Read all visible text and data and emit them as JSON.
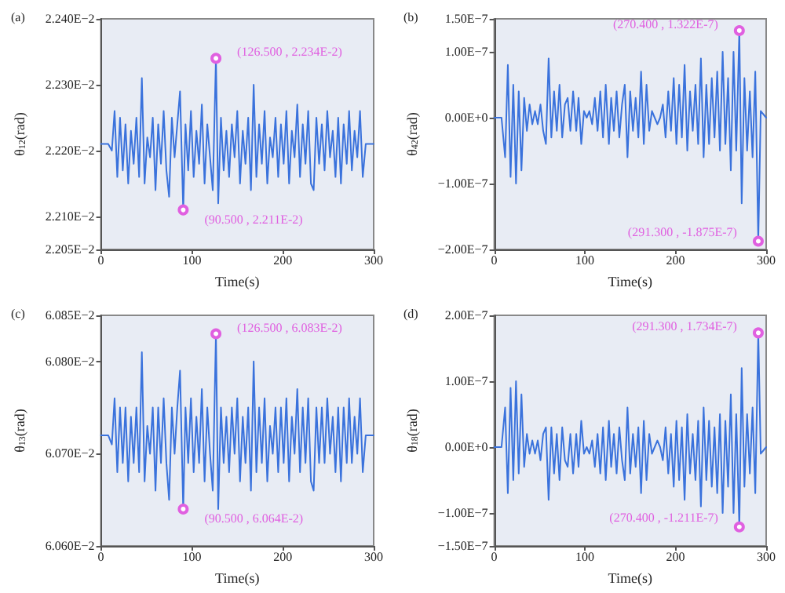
{
  "chart_data": [
    {
      "type": "line",
      "title": "(a)",
      "xlabel": "Time(s)",
      "ylabel": "θ$_{12}$(rad)",
      "grid": false,
      "marker": "none",
      "line_style": "solid",
      "xlim": [
        0,
        300
      ],
      "xticks": [
        0,
        100,
        200,
        300
      ],
      "ylim": [
        0.02205,
        0.0224
      ],
      "yticks": [
        {
          "value": 0.02205,
          "label": "2.205E−2"
        },
        {
          "value": 0.0221,
          "label": "2.210E−2"
        },
        {
          "value": 0.0222,
          "label": "2.220E−2"
        },
        {
          "value": 0.0223,
          "label": "2.230E−2"
        },
        {
          "value": 0.0224,
          "label": "2.240E−2"
        }
      ],
      "annotations": [
        {
          "text": "(126.500 , 2.234E-2)",
          "x": 126.5,
          "y": 0.02234
        },
        {
          "text": "(90.500 , 2.211E-2)",
          "x": 90.5,
          "y": 0.02211
        }
      ],
      "x": [
        0,
        8,
        12,
        15,
        18,
        21,
        24,
        27,
        30,
        33,
        36,
        39,
        42,
        45,
        48,
        51,
        54,
        57,
        60,
        63,
        66,
        69,
        72,
        75,
        78,
        81,
        84,
        87,
        90.5,
        93,
        96,
        99,
        102,
        105,
        108,
        111,
        114,
        117,
        120,
        123,
        126.5,
        129,
        132,
        135,
        138,
        141,
        144,
        147,
        150,
        153,
        156,
        159,
        162,
        165,
        168,
        171,
        174,
        177,
        180,
        183,
        186,
        189,
        192,
        195,
        198,
        201,
        204,
        207,
        210,
        213,
        216,
        219,
        222,
        225,
        228,
        231,
        234,
        237,
        240,
        243,
        246,
        249,
        252,
        255,
        258,
        261,
        264,
        267,
        270.4,
        273,
        276,
        279,
        282,
        285,
        288,
        291.3,
        294,
        300
      ],
      "series": [
        {
          "color": "#3a72dc",
          "values": [
            0.02221,
            0.02221,
            0.0222,
            0.02226,
            0.02216,
            0.02225,
            0.02217,
            0.02224,
            0.02215,
            0.02223,
            0.02218,
            0.02225,
            0.02216,
            0.02231,
            0.02215,
            0.02222,
            0.02219,
            0.02225,
            0.02214,
            0.02224,
            0.02218,
            0.02226,
            0.02217,
            0.02213,
            0.02225,
            0.02219,
            0.02224,
            0.02229,
            0.02211,
            0.02224,
            0.02217,
            0.02226,
            0.02216,
            0.02223,
            0.02218,
            0.02227,
            0.02215,
            0.02224,
            0.02219,
            0.02214,
            0.02234,
            0.02212,
            0.02225,
            0.02217,
            0.02223,
            0.02216,
            0.02224,
            0.02219,
            0.02226,
            0.02215,
            0.02223,
            0.02218,
            0.02225,
            0.02214,
            0.0223,
            0.02216,
            0.02224,
            0.02218,
            0.02226,
            0.02215,
            0.02222,
            0.02219,
            0.02225,
            0.02216,
            0.02224,
            0.02218,
            0.02226,
            0.02215,
            0.02223,
            0.02219,
            0.02227,
            0.02216,
            0.02224,
            0.02218,
            0.02226,
            0.02215,
            0.02214,
            0.02225,
            0.02218,
            0.02224,
            0.02217,
            0.02226,
            0.02219,
            0.02223,
            0.02216,
            0.02225,
            0.02215,
            0.02224,
            0.02218,
            0.02226,
            0.02217,
            0.02223,
            0.02219,
            0.02226,
            0.02216,
            0.02221,
            0.02221,
            0.02221
          ]
        }
      ]
    },
    {
      "type": "line",
      "title": "(b)",
      "xlabel": "Time(s)",
      "ylabel": "θ$_{42}$(rad)",
      "grid": false,
      "marker": "none",
      "line_style": "solid",
      "xlim": [
        0,
        300
      ],
      "xticks": [
        0,
        100,
        200,
        300
      ],
      "ylim": [
        -2e-07,
        1.5e-07
      ],
      "yticks": [
        {
          "value": -2e-07,
          "label": "−2.00E−7"
        },
        {
          "value": -1e-07,
          "label": "−1.00E−7"
        },
        {
          "value": 0,
          "label": "0.00E+0"
        },
        {
          "value": 1e-07,
          "label": "1.00E−7"
        },
        {
          "value": 1.5e-07,
          "label": "1.50E−7"
        }
      ],
      "annotations": [
        {
          "text": "(270.400 , 1.322E-7)",
          "x": 270.4,
          "y": 1.322e-07
        },
        {
          "text": "(291.300 , -1.875E-7)",
          "x": 291.3,
          "y": -1.875e-07
        }
      ],
      "x": [
        0,
        8,
        12,
        15,
        18,
        21,
        24,
        27,
        30,
        33,
        36,
        39,
        42,
        45,
        48,
        51,
        54,
        57,
        60,
        63,
        66,
        69,
        72,
        75,
        78,
        81,
        84,
        87,
        90.5,
        93,
        96,
        99,
        102,
        105,
        108,
        111,
        114,
        117,
        120,
        123,
        126.5,
        129,
        132,
        135,
        138,
        141,
        144,
        147,
        150,
        153,
        156,
        159,
        162,
        165,
        168,
        171,
        174,
        177,
        180,
        183,
        186,
        189,
        192,
        195,
        198,
        201,
        204,
        207,
        210,
        213,
        216,
        219,
        222,
        225,
        228,
        231,
        234,
        237,
        240,
        243,
        246,
        249,
        252,
        255,
        258,
        261,
        264,
        267,
        270.4,
        273,
        276,
        279,
        282,
        285,
        288,
        291.3,
        294,
        300
      ],
      "series": [
        {
          "color": "#3a72dc",
          "values": [
            0,
            0,
            -6e-08,
            8e-08,
            -9e-08,
            5e-08,
            -1e-07,
            4e-08,
            -8e-08,
            3e-08,
            -2e-08,
            2e-08,
            -1e-08,
            1e-08,
            -1e-08,
            2e-08,
            -2e-08,
            -4e-08,
            9e-08,
            -3e-08,
            4e-08,
            -2e-08,
            5e-08,
            -3e-08,
            2e-08,
            3e-08,
            -2e-08,
            4e-08,
            -2e-08,
            3e-08,
            -4e-08,
            1e-08,
            0,
            1e-08,
            -1e-08,
            3e-08,
            -2e-08,
            4e-08,
            -3e-08,
            5e-08,
            -4e-08,
            3e-08,
            -2e-08,
            4e-08,
            -3e-08,
            2e-08,
            5e-08,
            -6e-08,
            4e-08,
            -2e-08,
            3e-08,
            -3e-08,
            7e-08,
            -4e-08,
            5e-08,
            -2e-08,
            1e-08,
            0,
            -1e-08,
            0,
            2e-08,
            -3e-08,
            4e-08,
            -2e-08,
            6e-08,
            -4e-08,
            5e-08,
            -3e-08,
            8e-08,
            -5e-08,
            4e-08,
            -2e-08,
            5e-08,
            -4e-08,
            9e-08,
            -6e-08,
            5e-08,
            -4e-08,
            6e-08,
            -3e-08,
            7e-08,
            -5e-08,
            1e-07,
            -4e-08,
            6e-08,
            -8e-08,
            1e-07,
            -5e-08,
            1.322e-07,
            -1.3e-07,
            6e-08,
            -5e-08,
            4e-08,
            -6e-08,
            7e-08,
            -1.875e-07,
            1e-08,
            0
          ]
        }
      ]
    },
    {
      "type": "line",
      "title": "(c)",
      "xlabel": "Time(s)",
      "ylabel": "θ$_{13}$(rad)",
      "grid": false,
      "marker": "none",
      "line_style": "solid",
      "xlim": [
        0,
        300
      ],
      "xticks": [
        0,
        100,
        200,
        300
      ],
      "ylim": [
        0.0606,
        0.06085
      ],
      "yticks": [
        {
          "value": 0.0606,
          "label": "6.060E−2"
        },
        {
          "value": 0.0607,
          "label": "6.070E−2"
        },
        {
          "value": 0.0608,
          "label": "6.080E−2"
        },
        {
          "value": 0.06085,
          "label": "6.085E−2"
        }
      ],
      "annotations": [
        {
          "text": "(126.500 , 6.083E-2)",
          "x": 126.5,
          "y": 0.06083
        },
        {
          "text": "(90.500 , 6.064E-2)",
          "x": 90.5,
          "y": 0.06064
        }
      ],
      "x": [
        0,
        8,
        12,
        15,
        18,
        21,
        24,
        27,
        30,
        33,
        36,
        39,
        42,
        45,
        48,
        51,
        54,
        57,
        60,
        63,
        66,
        69,
        72,
        75,
        78,
        81,
        84,
        87,
        90.5,
        93,
        96,
        99,
        102,
        105,
        108,
        111,
        114,
        117,
        120,
        123,
        126.5,
        129,
        132,
        135,
        138,
        141,
        144,
        147,
        150,
        153,
        156,
        159,
        162,
        165,
        168,
        171,
        174,
        177,
        180,
        183,
        186,
        189,
        192,
        195,
        198,
        201,
        204,
        207,
        210,
        213,
        216,
        219,
        222,
        225,
        228,
        231,
        234,
        237,
        240,
        243,
        246,
        249,
        252,
        255,
        258,
        261,
        264,
        267,
        270.4,
        273,
        276,
        279,
        282,
        285,
        288,
        291.3,
        294,
        300
      ],
      "series": [
        {
          "color": "#3a72dc",
          "values": [
            0.06072,
            0.06072,
            0.06071,
            0.06076,
            0.06068,
            0.06075,
            0.06069,
            0.06075,
            0.06067,
            0.06074,
            0.06069,
            0.06075,
            0.06068,
            0.06081,
            0.06067,
            0.06073,
            0.0607,
            0.06075,
            0.06066,
            0.06075,
            0.06069,
            0.06076,
            0.06069,
            0.06065,
            0.06075,
            0.0607,
            0.06075,
            0.06079,
            0.06064,
            0.06075,
            0.06069,
            0.06076,
            0.06068,
            0.06074,
            0.06069,
            0.06077,
            0.06067,
            0.06075,
            0.0607,
            0.06066,
            0.06083,
            0.06064,
            0.06075,
            0.06069,
            0.06074,
            0.06068,
            0.06075,
            0.0607,
            0.06076,
            0.06067,
            0.06074,
            0.06069,
            0.06075,
            0.06066,
            0.0608,
            0.06068,
            0.06075,
            0.06069,
            0.06076,
            0.06067,
            0.06073,
            0.0607,
            0.06075,
            0.06068,
            0.06075,
            0.06069,
            0.06076,
            0.06067,
            0.06074,
            0.0607,
            0.06077,
            0.06068,
            0.06075,
            0.06069,
            0.06076,
            0.06067,
            0.06066,
            0.06075,
            0.06069,
            0.06075,
            0.06069,
            0.06076,
            0.0607,
            0.06074,
            0.06068,
            0.06075,
            0.06067,
            0.06075,
            0.06069,
            0.06076,
            0.06069,
            0.06074,
            0.0607,
            0.06076,
            0.06068,
            0.06072,
            0.06072,
            0.06072
          ]
        }
      ]
    },
    {
      "type": "line",
      "title": "(d)",
      "xlabel": "Time(s)",
      "ylabel": "θ$_{18}$(rad)",
      "grid": false,
      "marker": "none",
      "line_style": "solid",
      "xlim": [
        0,
        300
      ],
      "xticks": [
        0,
        100,
        200,
        300
      ],
      "ylim": [
        -1.5e-07,
        2e-07
      ],
      "yticks": [
        {
          "value": -1.5e-07,
          "label": "−1.50E−7"
        },
        {
          "value": -1e-07,
          "label": "−1.00E−7"
        },
        {
          "value": 0,
          "label": "0.00E+0"
        },
        {
          "value": 1e-07,
          "label": "1.00E−7"
        },
        {
          "value": 2e-07,
          "label": "2.00E−7"
        }
      ],
      "annotations": [
        {
          "text": "(291.300 , 1.734E-7)",
          "x": 291.3,
          "y": 1.734e-07
        },
        {
          "text": "(270.400 , -1.211E-7)",
          "x": 270.4,
          "y": -1.211e-07
        }
      ],
      "x": [
        0,
        8,
        12,
        15,
        18,
        21,
        24,
        27,
        30,
        33,
        36,
        39,
        42,
        45,
        48,
        51,
        54,
        57,
        60,
        63,
        66,
        69,
        72,
        75,
        78,
        81,
        84,
        87,
        90.5,
        93,
        96,
        99,
        102,
        105,
        108,
        111,
        114,
        117,
        120,
        123,
        126.5,
        129,
        132,
        135,
        138,
        141,
        144,
        147,
        150,
        153,
        156,
        159,
        162,
        165,
        168,
        171,
        174,
        177,
        180,
        183,
        186,
        189,
        192,
        195,
        198,
        201,
        204,
        207,
        210,
        213,
        216,
        219,
        222,
        225,
        228,
        231,
        234,
        237,
        240,
        243,
        246,
        249,
        252,
        255,
        258,
        261,
        264,
        267,
        270.4,
        273,
        276,
        279,
        282,
        285,
        288,
        291.3,
        294,
        300
      ],
      "series": [
        {
          "color": "#3a72dc",
          "values": [
            0,
            0,
            6e-08,
            -7e-08,
            9e-08,
            -5e-08,
            1e-07,
            -4e-08,
            8e-08,
            -3e-08,
            2e-08,
            -1e-08,
            1e-08,
            -1e-08,
            1e-08,
            -2e-08,
            2e-08,
            3e-08,
            -8e-08,
            3e-08,
            -4e-08,
            2e-08,
            -5e-08,
            3e-08,
            -2e-08,
            -3e-08,
            2e-08,
            -4e-08,
            2e-08,
            -3e-08,
            4e-08,
            -1e-08,
            0,
            -1e-08,
            1e-08,
            -3e-08,
            2e-08,
            -4e-08,
            3e-08,
            -5e-08,
            4e-08,
            -3e-08,
            2e-08,
            -4e-08,
            3e-08,
            -2e-08,
            -5e-08,
            6e-08,
            -4e-08,
            2e-08,
            -3e-08,
            3e-08,
            -7e-08,
            4e-08,
            -5e-08,
            2e-08,
            -1e-08,
            0,
            1e-08,
            0,
            -2e-08,
            3e-08,
            -4e-08,
            2e-08,
            -6e-08,
            4e-08,
            -5e-08,
            3e-08,
            -8e-08,
            5e-08,
            -4e-08,
            2e-08,
            -5e-08,
            4e-08,
            -9e-08,
            6e-08,
            -5e-08,
            4e-08,
            -6e-08,
            3e-08,
            -7e-08,
            5e-08,
            -1e-07,
            4e-08,
            -6e-08,
            8e-08,
            -1e-07,
            5e-08,
            -1.211e-07,
            1.2e-07,
            -6e-08,
            5e-08,
            -4e-08,
            6e-08,
            -7e-08,
            1.734e-07,
            -1e-08,
            0
          ]
        }
      ]
    }
  ]
}
